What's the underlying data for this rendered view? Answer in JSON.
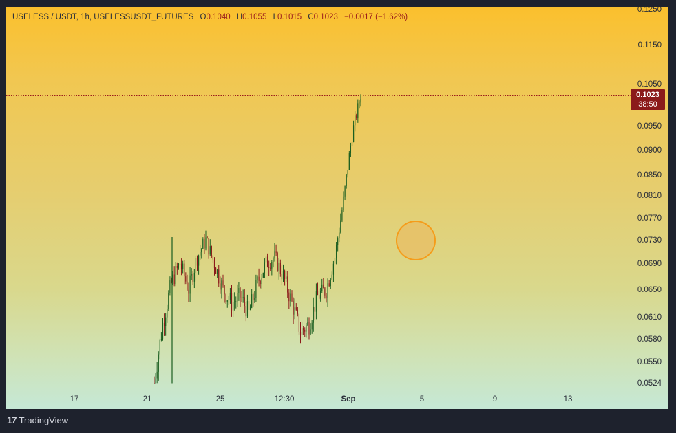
{
  "header": {
    "symbol": "USELESS / USDT, 1h, USELESSUSDT_FUTURES",
    "o_label": "O",
    "o_value": "0.1040",
    "h_label": "H",
    "h_value": "0.1055",
    "l_label": "L",
    "l_value": "0.1015",
    "c_label": "C",
    "c_value": "0.1023",
    "change": "−0.0017 (−1.62%)"
  },
  "price_badge": {
    "price": "0.1023",
    "countdown": "38:50"
  },
  "footer": {
    "brand": "TradingView",
    "logo_glyph": "17"
  },
  "colors": {
    "up": "#1b5e20",
    "down": "#8b1a1a",
    "accent": "#f59c1a",
    "badge": "#8b1a1a"
  },
  "chart_data": {
    "type": "line",
    "title": "USELESS / USDT, 1h, USELESSUSDT_FUTURES",
    "xlabel": "",
    "ylabel": "",
    "y_ticks": [
      "0.1250",
      "0.1150",
      "0.1050",
      "0.0950",
      "0.0900",
      "0.0850",
      "0.0810",
      "0.0770",
      "0.0730",
      "0.0690",
      "0.0650",
      "0.0610",
      "0.0580",
      "0.0550",
      "0.0524"
    ],
    "x_ticks": [
      "17",
      "21",
      "25",
      "12:30",
      "Sep",
      "5",
      "9",
      "13"
    ],
    "ylim": [
      0.0515,
      0.125
    ],
    "last_price": 0.1023,
    "series": [
      {
        "x": [
          "Aug 21",
          "Aug 21 12:00",
          "Aug 22",
          "Aug 22 12:00",
          "Aug 23",
          "Aug 23 12:00",
          "Aug 24",
          "Aug 24 12:00",
          "Aug 25",
          "Aug 25 12:00",
          "Aug 26",
          "Aug 26 12:00",
          "Aug 27",
          "Aug 27 12:00",
          "Aug 28",
          "Aug 28 12:00",
          "Aug 29",
          "Aug 29 12:00",
          "Aug 30",
          "Aug 30 12:00",
          "Aug 31",
          "Aug 31 12:00",
          "Sep 1",
          "Sep 1 12:00",
          "Sep 2"
        ],
        "values": [
          0.0524,
          0.06,
          0.066,
          0.069,
          0.065,
          0.07,
          0.073,
          0.069,
          0.065,
          0.063,
          0.064,
          0.0615,
          0.066,
          0.069,
          0.07,
          0.067,
          0.063,
          0.059,
          0.06,
          0.064,
          0.065,
          0.07,
          0.08,
          0.093,
          0.1023
        ]
      }
    ]
  }
}
